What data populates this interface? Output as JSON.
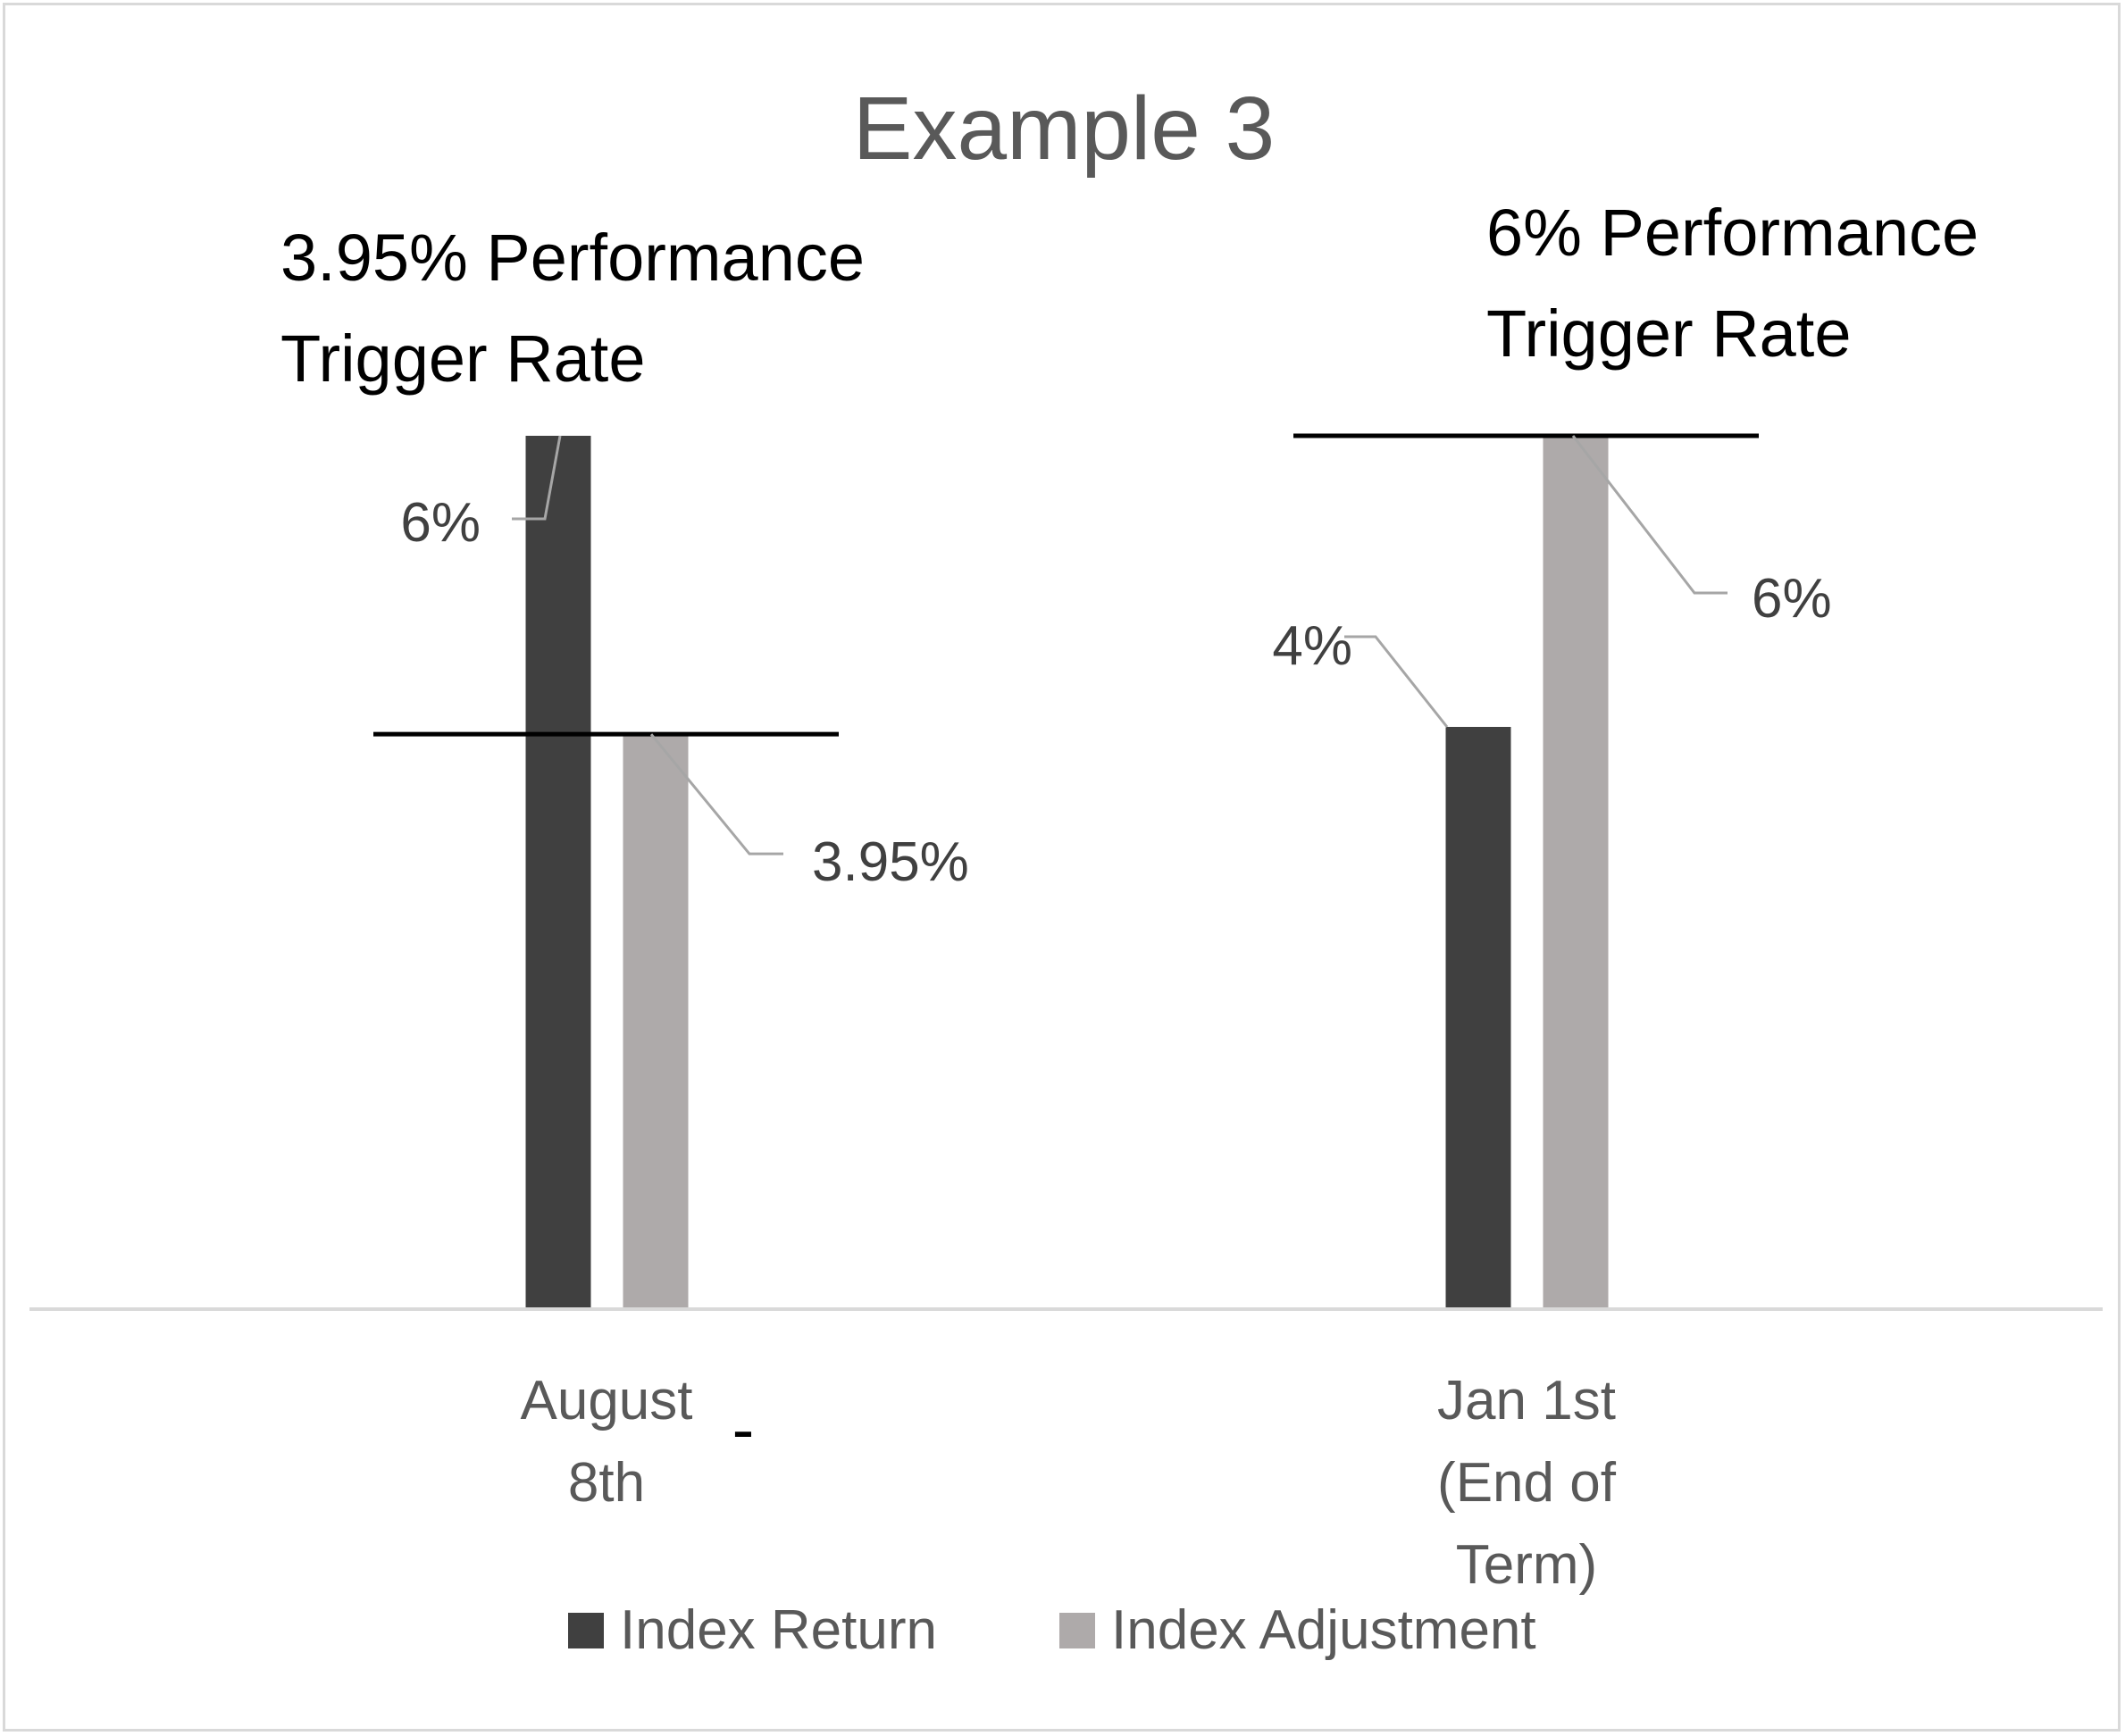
{
  "chart_data": {
    "type": "bar",
    "title": "Example 3",
    "categories": [
      [
        "August",
        "8th"
      ],
      [
        "Jan 1st",
        "(End of",
        "Term)"
      ]
    ],
    "series": [
      {
        "name": "Index Return",
        "values": [
          6,
          4
        ],
        "color": "#404040"
      },
      {
        "name": "Index Adjustment",
        "values": [
          3.95,
          6
        ],
        "color": "#aeaaaa"
      }
    ],
    "data_labels": [
      [
        "6%",
        "4%"
      ],
      [
        "3.95%",
        "6%"
      ]
    ],
    "trigger_rates": [
      3.95,
      6
    ],
    "annotations": [
      [
        "3.95% Performance",
        "Trigger Rate"
      ],
      [
        "6% Performance",
        "Trigger Rate"
      ]
    ],
    "stray_mark": "-",
    "ylim": [
      0,
      6
    ],
    "grid": false,
    "legend_position": "bottom"
  }
}
